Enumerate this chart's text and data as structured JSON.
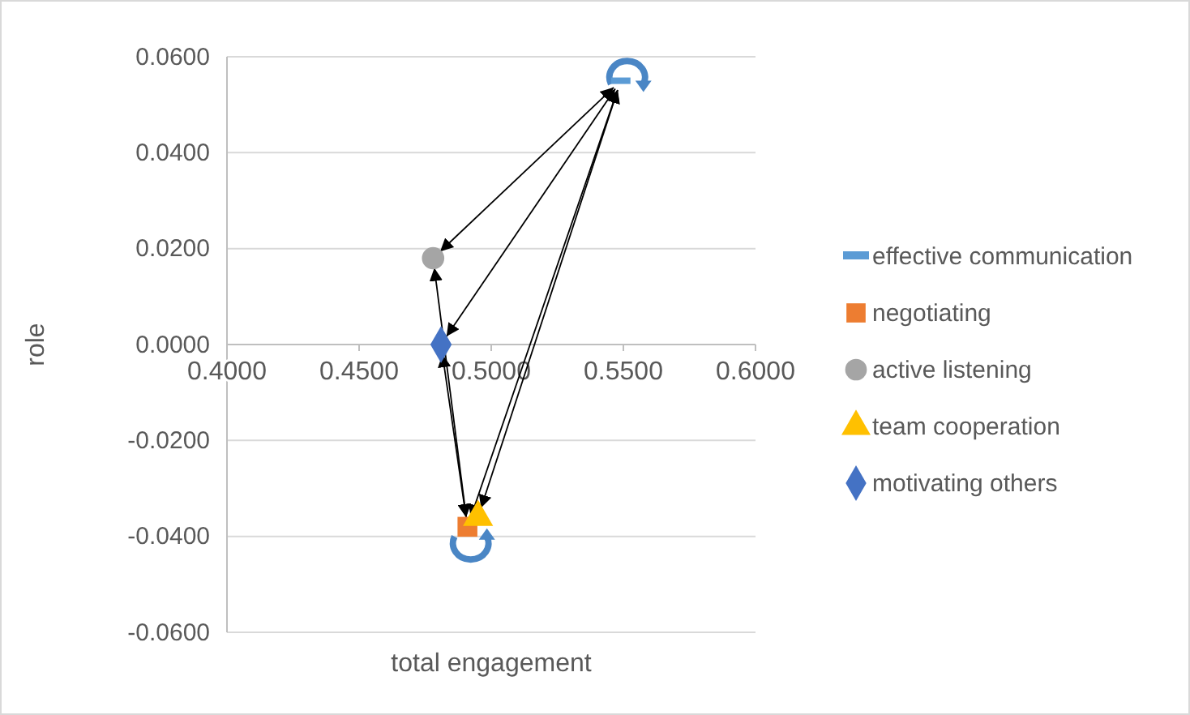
{
  "chart_data": {
    "type": "scatter",
    "xlabel": "total engagement",
    "ylabel": "role",
    "xlim": [
      0.4,
      0.6
    ],
    "xticks": [
      {
        "value": 0.4,
        "label": "0.4000"
      },
      {
        "value": 0.45,
        "label": "0.4500"
      },
      {
        "value": 0.5,
        "label": "0.5000"
      },
      {
        "value": 0.55,
        "label": "0.5500"
      },
      {
        "value": 0.6,
        "label": "0.6000"
      }
    ],
    "ylim": [
      -0.06,
      0.06
    ],
    "yticks": [
      {
        "value": -0.06,
        "label": "-0.0600"
      },
      {
        "value": -0.04,
        "label": "-0.0400"
      },
      {
        "value": -0.02,
        "label": "-0.0200"
      },
      {
        "value": 0,
        "label": "0.0000"
      },
      {
        "value": 0.02,
        "label": "0.0200"
      },
      {
        "value": 0.04,
        "label": "0.0400"
      },
      {
        "value": 0.06,
        "label": "0.0600"
      }
    ],
    "grid": "y",
    "legend": "right",
    "series": [
      {
        "name": "effective communication",
        "color": "#5b9bd5",
        "x": [
          0.549
        ],
        "values": [
          0.055
        ],
        "marker": "square"
      },
      {
        "name": "negotiating",
        "color": "#ed7d31",
        "x": [
          0.491
        ],
        "values": [
          -0.038
        ],
        "marker": "square"
      },
      {
        "name": "active listening",
        "color": "#a5a5a5",
        "x": [
          0.478
        ],
        "values": [
          0.018
        ],
        "marker": "circle"
      },
      {
        "name": "team cooperation",
        "color": "#ffc000",
        "x": [
          0.495
        ],
        "values": [
          -0.036
        ],
        "marker": "triangle"
      },
      {
        "name": "motivating others",
        "color": "#4472c4",
        "x": [
          0.481
        ],
        "values": [
          0.0
        ],
        "marker": "diamond"
      }
    ]
  }
}
